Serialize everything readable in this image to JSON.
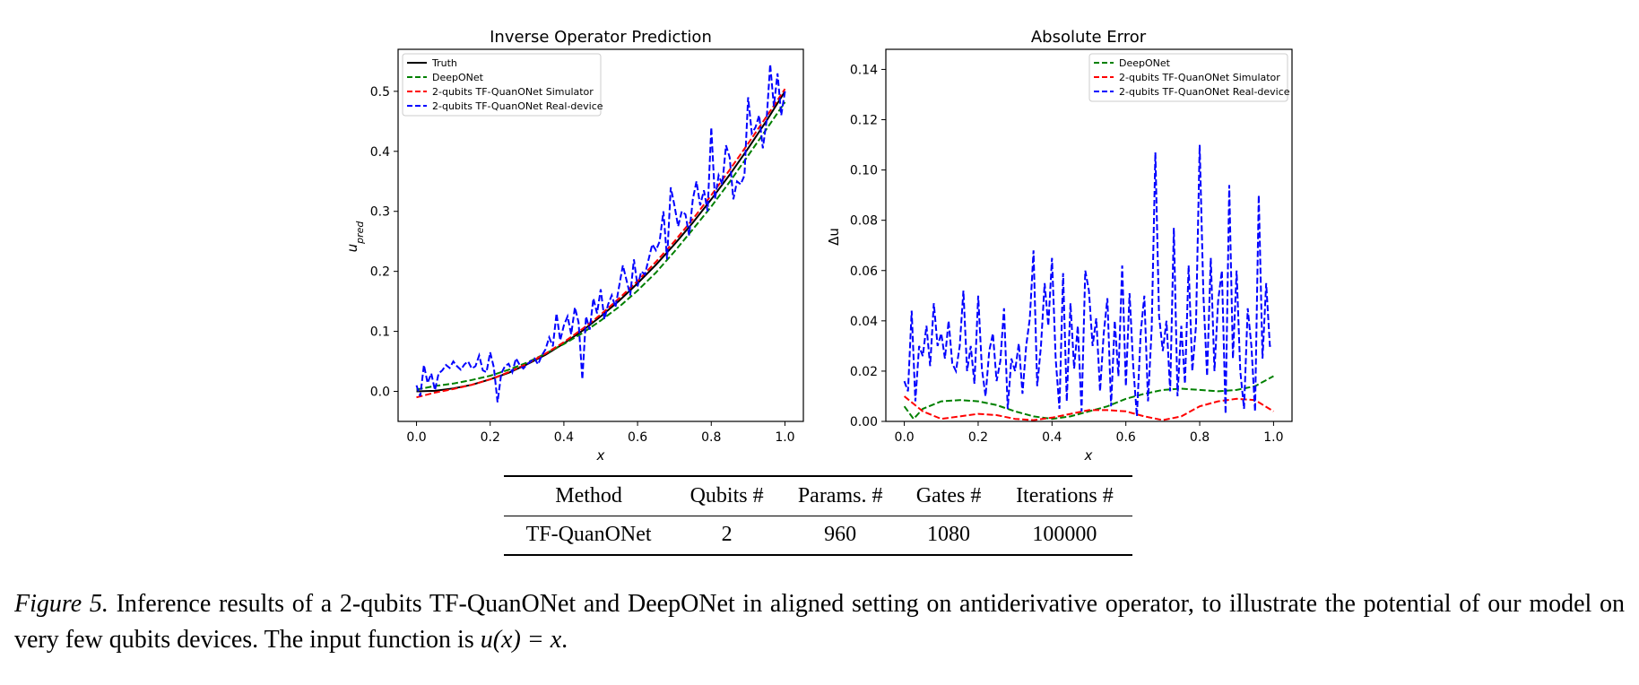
{
  "chart_data": [
    {
      "type": "line",
      "title": "Inverse Operator Prediction",
      "xlabel": "x",
      "ylabel": "u_pred",
      "ylabel_main": "u",
      "ylabel_sub": "pred",
      "xlim": [
        -0.05,
        1.05
      ],
      "ylim": [
        -0.05,
        0.57
      ],
      "xticks": [
        0.0,
        0.2,
        0.4,
        0.6,
        0.8,
        1.0
      ],
      "xtick_labels": [
        "0.0",
        "0.2",
        "0.4",
        "0.6",
        "0.8",
        "1.0"
      ],
      "yticks": [
        0.0,
        0.1,
        0.2,
        0.3,
        0.4,
        0.5
      ],
      "ytick_labels": [
        "0.0",
        "0.1",
        "0.2",
        "0.3",
        "0.4",
        "0.5"
      ],
      "grid": false,
      "legend_position": "upper-left",
      "series": [
        {
          "name": "Truth",
          "color": "#000000",
          "style": "solid",
          "x": [
            0,
            0.05,
            0.1,
            0.15,
            0.2,
            0.25,
            0.3,
            0.35,
            0.4,
            0.45,
            0.5,
            0.55,
            0.6,
            0.65,
            0.7,
            0.75,
            0.8,
            0.85,
            0.9,
            0.95,
            1.0
          ],
          "y": [
            0,
            0.001,
            0.005,
            0.011,
            0.02,
            0.031,
            0.045,
            0.061,
            0.08,
            0.101,
            0.125,
            0.151,
            0.18,
            0.211,
            0.245,
            0.281,
            0.32,
            0.361,
            0.405,
            0.451,
            0.5
          ]
        },
        {
          "name": "DeepONet",
          "color": "#008000",
          "style": "dashed",
          "x": [
            0,
            0.05,
            0.1,
            0.15,
            0.2,
            0.25,
            0.3,
            0.35,
            0.4,
            0.45,
            0.5,
            0.55,
            0.6,
            0.65,
            0.7,
            0.75,
            0.8,
            0.85,
            0.9,
            0.95,
            1.0
          ],
          "y": [
            0.003,
            0.009,
            0.013,
            0.019,
            0.026,
            0.036,
            0.048,
            0.063,
            0.079,
            0.097,
            0.118,
            0.141,
            0.168,
            0.198,
            0.233,
            0.27,
            0.308,
            0.349,
            0.393,
            0.437,
            0.482
          ]
        },
        {
          "name": "2-qubits TF-QuanONet Simulator",
          "color": "#ff0000",
          "style": "dashed",
          "x": [
            0,
            0.05,
            0.1,
            0.15,
            0.2,
            0.25,
            0.3,
            0.35,
            0.4,
            0.45,
            0.5,
            0.55,
            0.6,
            0.65,
            0.7,
            0.75,
            0.8,
            0.85,
            0.9,
            0.95,
            1.0
          ],
          "y": [
            -0.01,
            -0.002,
            0.004,
            0.011,
            0.02,
            0.032,
            0.046,
            0.063,
            0.082,
            0.104,
            0.128,
            0.155,
            0.184,
            0.216,
            0.25,
            0.287,
            0.327,
            0.369,
            0.413,
            0.458,
            0.504
          ]
        },
        {
          "name": "2-qubits TF-QuanONet Real-device",
          "color": "#0000ff",
          "style": "dashed",
          "x": [
            0.0,
            0.01,
            0.02,
            0.03,
            0.04,
            0.05,
            0.06,
            0.07,
            0.08,
            0.09,
            0.1,
            0.11,
            0.12,
            0.13,
            0.14,
            0.15,
            0.16,
            0.17,
            0.18,
            0.19,
            0.2,
            0.21,
            0.22,
            0.23,
            0.24,
            0.25,
            0.26,
            0.27,
            0.28,
            0.29,
            0.3,
            0.31,
            0.32,
            0.33,
            0.34,
            0.35,
            0.36,
            0.37,
            0.38,
            0.39,
            0.4,
            0.41,
            0.42,
            0.43,
            0.44,
            0.45,
            0.46,
            0.47,
            0.48,
            0.49,
            0.5,
            0.51,
            0.52,
            0.53,
            0.54,
            0.55,
            0.56,
            0.57,
            0.58,
            0.59,
            0.6,
            0.61,
            0.62,
            0.63,
            0.64,
            0.65,
            0.66,
            0.67,
            0.68,
            0.69,
            0.7,
            0.71,
            0.72,
            0.73,
            0.74,
            0.75,
            0.76,
            0.77,
            0.78,
            0.79,
            0.8,
            0.81,
            0.82,
            0.83,
            0.84,
            0.85,
            0.86,
            0.87,
            0.88,
            0.89,
            0.9,
            0.91,
            0.92,
            0.93,
            0.94,
            0.95,
            0.96,
            0.97,
            0.98,
            0.99,
            1.0
          ],
          "y": [
            0.01,
            -0.008,
            0.044,
            0.014,
            0.03,
            0.002,
            0.03,
            0.035,
            0.044,
            0.039,
            0.05,
            0.042,
            0.036,
            0.045,
            0.05,
            0.038,
            0.042,
            0.06,
            0.035,
            0.032,
            0.065,
            0.04,
            -0.018,
            0.03,
            0.042,
            0.046,
            0.032,
            0.055,
            0.044,
            0.038,
            0.045,
            0.05,
            0.055,
            0.045,
            0.06,
            0.07,
            0.09,
            0.075,
            0.13,
            0.085,
            0.11,
            0.125,
            0.095,
            0.14,
            0.115,
            0.02,
            0.125,
            0.103,
            0.155,
            0.13,
            0.17,
            0.12,
            0.145,
            0.16,
            0.14,
            0.175,
            0.21,
            0.185,
            0.16,
            0.22,
            0.175,
            0.2,
            0.195,
            0.22,
            0.245,
            0.235,
            0.25,
            0.3,
            0.22,
            0.34,
            0.31,
            0.275,
            0.3,
            0.295,
            0.26,
            0.32,
            0.35,
            0.31,
            0.335,
            0.3,
            0.44,
            0.32,
            0.36,
            0.345,
            0.41,
            0.39,
            0.32,
            0.35,
            0.345,
            0.36,
            0.49,
            0.43,
            0.44,
            0.46,
            0.405,
            0.45,
            0.545,
            0.475,
            0.53,
            0.46,
            0.5
          ]
        }
      ]
    },
    {
      "type": "line",
      "title": "Absolute Error",
      "xlabel": "x",
      "ylabel": "Δu",
      "xlim": [
        -0.05,
        1.05
      ],
      "ylim": [
        0,
        0.148
      ],
      "xticks": [
        0.0,
        0.2,
        0.4,
        0.6,
        0.8,
        1.0
      ],
      "xtick_labels": [
        "0.0",
        "0.2",
        "0.4",
        "0.6",
        "0.8",
        "1.0"
      ],
      "yticks": [
        0.0,
        0.02,
        0.04,
        0.06,
        0.08,
        0.1,
        0.12,
        0.14
      ],
      "ytick_labels": [
        "0.00",
        "0.02",
        "0.04",
        "0.06",
        "0.08",
        "0.10",
        "0.12",
        "0.14"
      ],
      "grid": false,
      "legend_position": "upper-right",
      "series": [
        {
          "name": "DeepONet",
          "color": "#008000",
          "style": "dashed",
          "x": [
            0,
            0.025,
            0.05,
            0.1,
            0.15,
            0.2,
            0.25,
            0.3,
            0.35,
            0.4,
            0.45,
            0.5,
            0.55,
            0.6,
            0.65,
            0.7,
            0.75,
            0.8,
            0.85,
            0.9,
            0.95,
            1.0
          ],
          "y": [
            0.006,
            0.001,
            0.005,
            0.008,
            0.0085,
            0.008,
            0.0065,
            0.004,
            0.002,
            0.001,
            0.002,
            0.004,
            0.006,
            0.009,
            0.011,
            0.0125,
            0.013,
            0.0125,
            0.012,
            0.0125,
            0.014,
            0.018
          ]
        },
        {
          "name": "2-qubits TF-QuanONet Simulator",
          "color": "#ff0000",
          "style": "dashed",
          "x": [
            0,
            0.025,
            0.05,
            0.1,
            0.15,
            0.2,
            0.25,
            0.3,
            0.35,
            0.4,
            0.45,
            0.5,
            0.55,
            0.6,
            0.65,
            0.7,
            0.75,
            0.8,
            0.85,
            0.9,
            0.95,
            1.0
          ],
          "y": [
            0.01,
            0.007,
            0.004,
            0.001,
            0.002,
            0.003,
            0.0025,
            0.001,
            0.0005,
            0.0015,
            0.003,
            0.0045,
            0.0045,
            0.004,
            0.002,
            0.0005,
            0.002,
            0.006,
            0.008,
            0.009,
            0.0085,
            0.004
          ]
        },
        {
          "name": "2-qubits TF-QuanONet Real-device",
          "color": "#0000ff",
          "style": "dashed",
          "x": [
            0.0,
            0.01,
            0.02,
            0.03,
            0.04,
            0.05,
            0.06,
            0.07,
            0.08,
            0.09,
            0.1,
            0.11,
            0.12,
            0.13,
            0.14,
            0.15,
            0.16,
            0.17,
            0.18,
            0.19,
            0.2,
            0.21,
            0.22,
            0.23,
            0.24,
            0.25,
            0.26,
            0.27,
            0.28,
            0.29,
            0.3,
            0.31,
            0.32,
            0.33,
            0.34,
            0.35,
            0.36,
            0.37,
            0.38,
            0.39,
            0.4,
            0.41,
            0.42,
            0.43,
            0.44,
            0.45,
            0.46,
            0.47,
            0.48,
            0.49,
            0.5,
            0.51,
            0.52,
            0.53,
            0.54,
            0.55,
            0.56,
            0.57,
            0.58,
            0.59,
            0.6,
            0.61,
            0.62,
            0.63,
            0.64,
            0.65,
            0.66,
            0.67,
            0.68,
            0.69,
            0.7,
            0.71,
            0.72,
            0.73,
            0.74,
            0.75,
            0.76,
            0.77,
            0.78,
            0.79,
            0.8,
            0.81,
            0.82,
            0.83,
            0.84,
            0.85,
            0.86,
            0.87,
            0.88,
            0.89,
            0.9,
            0.91,
            0.92,
            0.93,
            0.94,
            0.95,
            0.96,
            0.97,
            0.98,
            0.99,
            1.0
          ],
          "y": [
            0.016,
            0.012,
            0.044,
            0.008,
            0.03,
            0.026,
            0.038,
            0.022,
            0.047,
            0.03,
            0.035,
            0.025,
            0.04,
            0.023,
            0.02,
            0.03,
            0.052,
            0.02,
            0.03,
            0.015,
            0.05,
            0.021,
            0.01,
            0.028,
            0.035,
            0.016,
            0.024,
            0.045,
            0.005,
            0.025,
            0.02,
            0.031,
            0.011,
            0.03,
            0.041,
            0.068,
            0.014,
            0.03,
            0.055,
            0.038,
            0.065,
            0.025,
            0.005,
            0.059,
            0.008,
            0.047,
            0.021,
            0.038,
            0.004,
            0.06,
            0.052,
            0.03,
            0.041,
            0.012,
            0.035,
            0.049,
            0.006,
            0.04,
            0.018,
            0.062,
            0.014,
            0.051,
            0.022,
            0.002,
            0.035,
            0.05,
            0.008,
            0.037,
            0.107,
            0.042,
            0.028,
            0.04,
            0.012,
            0.077,
            0.01,
            0.038,
            0.015,
            0.062,
            0.02,
            0.038,
            0.11,
            0.05,
            0.018,
            0.065,
            0.02,
            0.048,
            0.06,
            0.003,
            0.094,
            0.025,
            0.06,
            0.02,
            0.005,
            0.045,
            0.03,
            0.004,
            0.09,
            0.025,
            0.055,
            0.03,
            0.03
          ]
        }
      ]
    }
  ],
  "table": {
    "headers": [
      "Method",
      "Qubits #",
      "Params. #",
      "Gates #",
      "Iterations #"
    ],
    "rows": [
      [
        "TF-QuanONet",
        "2",
        "960",
        "1080",
        "100000"
      ]
    ]
  },
  "caption": {
    "label": "Figure 5.",
    "text_before": " Inference results of a 2-qubits TF-QuanONet and DeepONet in aligned setting on antiderivative operator, to illustrate the potential of our model on very few qubits devices. The input function is ",
    "math": "u(x) = x",
    "text_after": "."
  }
}
